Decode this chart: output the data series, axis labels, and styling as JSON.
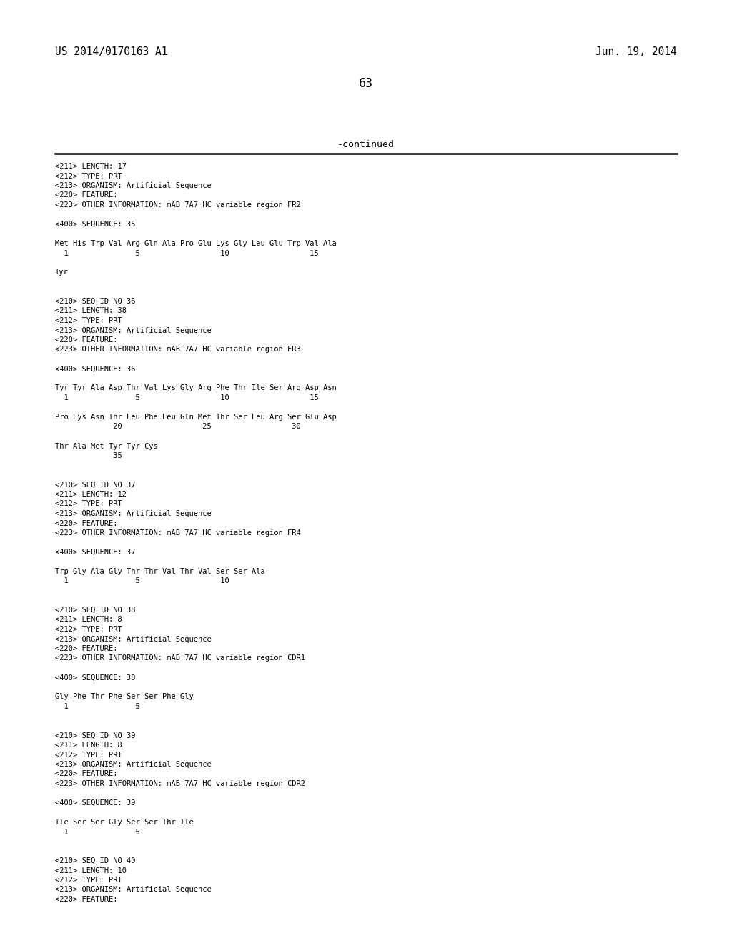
{
  "background_color": "#ffffff",
  "header_left": "US 2014/0170163 A1",
  "header_right": "Jun. 19, 2014",
  "page_number": "63",
  "continued_text": "-continued",
  "header_fontsize": 10.5,
  "page_num_fontsize": 12,
  "continued_fontsize": 9.5,
  "body_fontsize": 7.5,
  "body_lines": [
    "<211> LENGTH: 17",
    "<212> TYPE: PRT",
    "<213> ORGANISM: Artificial Sequence",
    "<220> FEATURE:",
    "<223> OTHER INFORMATION: mAB 7A7 HC variable region FR2",
    "",
    "<400> SEQUENCE: 35",
    "",
    "Met His Trp Val Arg Gln Ala Pro Glu Lys Gly Leu Glu Trp Val Ala",
    "  1               5                  10                  15",
    "",
    "Tyr",
    "",
    "",
    "<210> SEQ ID NO 36",
    "<211> LENGTH: 38",
    "<212> TYPE: PRT",
    "<213> ORGANISM: Artificial Sequence",
    "<220> FEATURE:",
    "<223> OTHER INFORMATION: mAB 7A7 HC variable region FR3",
    "",
    "<400> SEQUENCE: 36",
    "",
    "Tyr Tyr Ala Asp Thr Val Lys Gly Arg Phe Thr Ile Ser Arg Asp Asn",
    "  1               5                  10                  15",
    "",
    "Pro Lys Asn Thr Leu Phe Leu Gln Met Thr Ser Leu Arg Ser Glu Asp",
    "             20                  25                  30",
    "",
    "Thr Ala Met Tyr Tyr Cys",
    "             35",
    "",
    "",
    "<210> SEQ ID NO 37",
    "<211> LENGTH: 12",
    "<212> TYPE: PRT",
    "<213> ORGANISM: Artificial Sequence",
    "<220> FEATURE:",
    "<223> OTHER INFORMATION: mAB 7A7 HC variable region FR4",
    "",
    "<400> SEQUENCE: 37",
    "",
    "Trp Gly Ala Gly Thr Thr Val Thr Val Ser Ser Ala",
    "  1               5                  10",
    "",
    "",
    "<210> SEQ ID NO 38",
    "<211> LENGTH: 8",
    "<212> TYPE: PRT",
    "<213> ORGANISM: Artificial Sequence",
    "<220> FEATURE:",
    "<223> OTHER INFORMATION: mAB 7A7 HC variable region CDR1",
    "",
    "<400> SEQUENCE: 38",
    "",
    "Gly Phe Thr Phe Ser Ser Phe Gly",
    "  1               5",
    "",
    "",
    "<210> SEQ ID NO 39",
    "<211> LENGTH: 8",
    "<212> TYPE: PRT",
    "<213> ORGANISM: Artificial Sequence",
    "<220> FEATURE:",
    "<223> OTHER INFORMATION: mAB 7A7 HC variable region CDR2",
    "",
    "<400> SEQUENCE: 39",
    "",
    "Ile Ser Ser Gly Ser Ser Thr Ile",
    "  1               5",
    "",
    "",
    "<210> SEQ ID NO 40",
    "<211> LENGTH: 10",
    "<212> TYPE: PRT",
    "<213> ORGANISM: Artificial Sequence",
    "<220> FEATURE:"
  ]
}
